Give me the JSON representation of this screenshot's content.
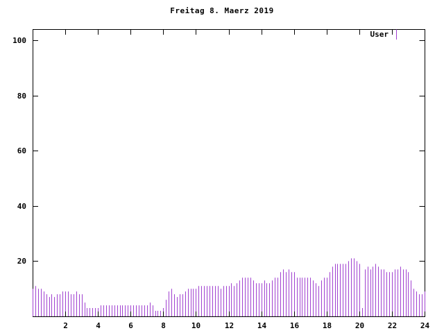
{
  "chart_data": {
    "type": "bar",
    "subtype": "impulses",
    "title": "Freitag 8. Maerz 2019",
    "legend": "User",
    "xlabel": "",
    "ylabel": "",
    "color": "#A040D0",
    "border_color": "#000000",
    "background_color": "#ffffff",
    "xlim": [
      0,
      24
    ],
    "ylim": [
      0,
      104
    ],
    "x_ticks": [
      2,
      4,
      6,
      8,
      10,
      12,
      14,
      16,
      18,
      20,
      22,
      24
    ],
    "y_ticks": [
      20,
      40,
      60,
      80,
      100
    ],
    "x_step_minutes": 10,
    "x_unit": "hour of day",
    "values": [
      10,
      11,
      10,
      10,
      9,
      8,
      7,
      8,
      7,
      8,
      8,
      9,
      9,
      9,
      8,
      8,
      9,
      8,
      8,
      5,
      3,
      3,
      3,
      3,
      3,
      4,
      4,
      4,
      4,
      4,
      4,
      4,
      4,
      4,
      4,
      4,
      4,
      4,
      4,
      4,
      4,
      4,
      4,
      5,
      4,
      2,
      2,
      2,
      3,
      6,
      9,
      10,
      8,
      7,
      8,
      8,
      9,
      10,
      10,
      10,
      10,
      11,
      11,
      11,
      11,
      11,
      11,
      11,
      11,
      10,
      11,
      11,
      11,
      12,
      11,
      12,
      13,
      14,
      14,
      14,
      14,
      13,
      12,
      12,
      12,
      13,
      12,
      12,
      13,
      14,
      14,
      16,
      17,
      16,
      17,
      16,
      16,
      14,
      14,
      14,
      14,
      14,
      14,
      13,
      12,
      11,
      13,
      14,
      14,
      16,
      18,
      19,
      19,
      19,
      19,
      19,
      20,
      21,
      21,
      20,
      19,
      3,
      17,
      18,
      17,
      18,
      19,
      18,
      17,
      17,
      16,
      16,
      16,
      17,
      17,
      18,
      17,
      17,
      16,
      13,
      10,
      9,
      8,
      8,
      9
    ]
  }
}
